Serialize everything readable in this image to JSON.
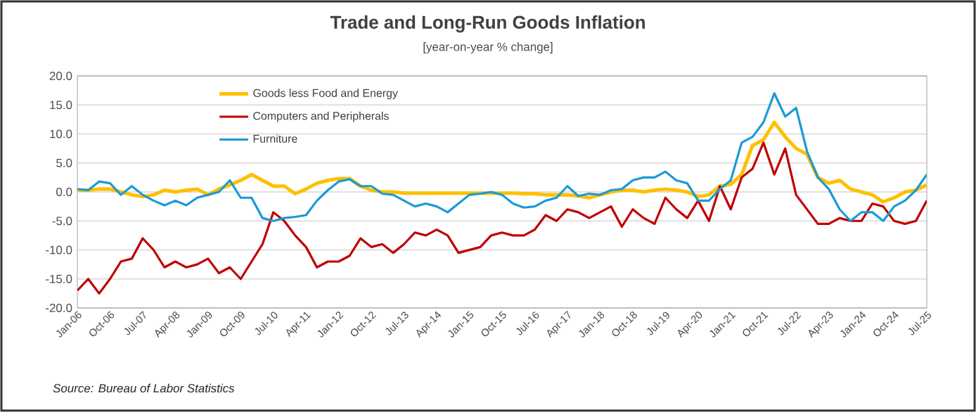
{
  "chart_data": {
    "type": "line",
    "title": "Trade and Long-Run Goods Inflation",
    "subtitle": "[year-on-year % change]",
    "annotations": [
      "Source: Bureau of Labor Statistics"
    ],
    "x": [
      "2006-01",
      "2006-04",
      "2006-07",
      "2006-10",
      "2007-01",
      "2007-04",
      "2007-07",
      "2007-10",
      "2008-01",
      "2008-04",
      "2008-07",
      "2008-10",
      "2009-01",
      "2009-04",
      "2009-07",
      "2009-10",
      "2010-01",
      "2010-04",
      "2010-07",
      "2010-10",
      "2011-01",
      "2011-04",
      "2011-07",
      "2011-10",
      "2012-01",
      "2012-04",
      "2012-07",
      "2012-10",
      "2013-01",
      "2013-04",
      "2013-07",
      "2013-10",
      "2014-01",
      "2014-04",
      "2014-07",
      "2014-10",
      "2015-01",
      "2015-04",
      "2015-07",
      "2015-10",
      "2016-01",
      "2016-04",
      "2016-07",
      "2016-10",
      "2017-01",
      "2017-04",
      "2017-07",
      "2017-10",
      "2018-01",
      "2018-04",
      "2018-07",
      "2018-10",
      "2019-01",
      "2019-04",
      "2019-07",
      "2019-10",
      "2020-01",
      "2020-04",
      "2020-07",
      "2020-10",
      "2021-01",
      "2021-04",
      "2021-07",
      "2021-10",
      "2022-01",
      "2022-04",
      "2022-07",
      "2022-10",
      "2023-01",
      "2023-04",
      "2023-07",
      "2023-10",
      "2024-01",
      "2024-04",
      "2024-07",
      "2024-10",
      "2025-01",
      "2025-04",
      "2025-07"
    ],
    "series": [
      {
        "name": "Goods less Food and Energy",
        "color": "#ffc000",
        "values": [
          0.3,
          0.3,
          0.5,
          0.5,
          0,
          -0.5,
          -0.8,
          -0.5,
          0.3,
          0,
          0.3,
          0.5,
          -0.5,
          0.5,
          1.2,
          2,
          3,
          2,
          1,
          1,
          -0.3,
          0.5,
          1.5,
          2,
          2.3,
          2.3,
          1,
          0.3,
          0,
          0,
          -0.2,
          -0.2,
          -0.2,
          -0.2,
          -0.2,
          -0.2,
          -0.2,
          -0.2,
          -0.2,
          -0.2,
          -0.2,
          -0.3,
          -0.3,
          -0.5,
          -0.5,
          -0.5,
          -0.7,
          -1,
          -0.5,
          0,
          0.3,
          0.3,
          0,
          0.3,
          0.5,
          0.3,
          0,
          -0.8,
          -0.5,
          1,
          1.3,
          3,
          8,
          9,
          12,
          9.5,
          7.5,
          6.5,
          2.5,
          1.5,
          2,
          0.5,
          0,
          -0.5,
          -1.7,
          -1,
          0,
          0.3,
          1.2
        ]
      },
      {
        "name": "Computers and Peripherals",
        "color": "#c00000",
        "values": [
          -17,
          -15,
          -17.5,
          -15,
          -12,
          -11.5,
          -8,
          -10,
          -13,
          -12,
          -13,
          -12.5,
          -11.5,
          -14,
          -13,
          -15,
          -12,
          -9,
          -3.5,
          -5,
          -7.5,
          -9.5,
          -13,
          -12,
          -12,
          -11,
          -8,
          -9.5,
          -9,
          -10.5,
          -9,
          -7,
          -7.5,
          -6.5,
          -7.5,
          -10.5,
          -10,
          -9.5,
          -7.5,
          -7,
          -7.5,
          -7.5,
          -6.5,
          -4,
          -5,
          -3,
          -3.5,
          -4.5,
          -3.5,
          -2.5,
          -6,
          -3,
          -4.5,
          -5.5,
          -1,
          -3,
          -4.5,
          -1.5,
          -5,
          1,
          -3,
          2.5,
          4,
          8.5,
          3,
          7.5,
          -0.5,
          -3,
          -5.5,
          -5.5,
          -4.5,
          -5,
          -5,
          -2,
          -2.5,
          -5,
          -5.5,
          -5,
          -1.5
        ]
      },
      {
        "name": "Furniture",
        "color": "#1b9ad6",
        "values": [
          0.5,
          0.3,
          1.8,
          1.5,
          -0.5,
          1,
          -0.5,
          -1.5,
          -2.3,
          -1.5,
          -2.3,
          -1,
          -0.5,
          0,
          2,
          -1,
          -1,
          -4.5,
          -5,
          -4.5,
          -4.3,
          -4,
          -1.5,
          0.3,
          1.8,
          2.2,
          1,
          1,
          -0.3,
          -0.5,
          -1.5,
          -2.5,
          -2,
          -2.5,
          -3.5,
          -2,
          -0.5,
          -0.3,
          0,
          -0.5,
          -2,
          -2.7,
          -2.5,
          -1.5,
          -1,
          1,
          -0.7,
          -0.3,
          -0.5,
          0.3,
          0.5,
          2,
          2.5,
          2.5,
          3.5,
          2,
          1.5,
          -1.5,
          -1.5,
          0.5,
          2,
          8.5,
          9.5,
          12,
          17,
          13,
          14.5,
          7,
          2.5,
          0.5,
          -3,
          -5,
          -3.5,
          -3.5,
          -5,
          -2.5,
          -1.5,
          0.3,
          3
        ]
      }
    ],
    "xlim": [
      "2006-01",
      "2025-07"
    ],
    "xticks": [
      {
        "value": "2006-01",
        "label": "Jan-06"
      },
      {
        "value": "2006-10",
        "label": "Oct-06"
      },
      {
        "value": "2007-07",
        "label": "Jul-07"
      },
      {
        "value": "2008-04",
        "label": "Apr-08"
      },
      {
        "value": "2009-01",
        "label": "Jan-09"
      },
      {
        "value": "2009-10",
        "label": "Oct-09"
      },
      {
        "value": "2010-07",
        "label": "Jul-10"
      },
      {
        "value": "2011-04",
        "label": "Apr-11"
      },
      {
        "value": "2012-01",
        "label": "Jan-12"
      },
      {
        "value": "2012-10",
        "label": "Oct-12"
      },
      {
        "value": "2013-07",
        "label": "Jul-13"
      },
      {
        "value": "2014-04",
        "label": "Apr-14"
      },
      {
        "value": "2015-01",
        "label": "Jan-15"
      },
      {
        "value": "2015-10",
        "label": "Oct-15"
      },
      {
        "value": "2016-07",
        "label": "Jul-16"
      },
      {
        "value": "2017-04",
        "label": "Apr-17"
      },
      {
        "value": "2018-01",
        "label": "Jan-18"
      },
      {
        "value": "2018-10",
        "label": "Oct-18"
      },
      {
        "value": "2019-07",
        "label": "Jul-19"
      },
      {
        "value": "2020-04",
        "label": "Apr-20"
      },
      {
        "value": "2021-01",
        "label": "Jan-21"
      },
      {
        "value": "2021-10",
        "label": "Oct-21"
      },
      {
        "value": "2022-07",
        "label": "Jul-22"
      },
      {
        "value": "2023-04",
        "label": "Apr-23"
      },
      {
        "value": "2024-01",
        "label": "Jan-24"
      },
      {
        "value": "2024-10",
        "label": "Oct-24"
      },
      {
        "value": "2025-07",
        "label": "Jul-25"
      }
    ],
    "ylim": [
      -20,
      20
    ],
    "yticks": [
      {
        "value": -20,
        "label": "-20.0"
      },
      {
        "value": -15,
        "label": "-15.0"
      },
      {
        "value": -10,
        "label": "-10.0"
      },
      {
        "value": -5,
        "label": "-5.0"
      },
      {
        "value": 0,
        "label": "0.0"
      },
      {
        "value": 5,
        "label": "5.0"
      },
      {
        "value": 10,
        "label": "10.0"
      },
      {
        "value": 15,
        "label": "15.0"
      },
      {
        "value": 20,
        "label": "20.0"
      }
    ],
    "grid": "y",
    "legend": "top left",
    "marker": "none",
    "line_style": "solid"
  }
}
